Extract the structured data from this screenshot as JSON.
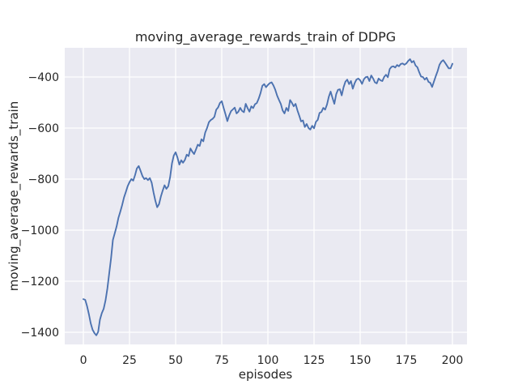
{
  "figure": {
    "title": "moving_average_rewards_train of DDPG",
    "xlabel": "episodes",
    "ylabel": "moving_average_rewards_train"
  },
  "chart_data": {
    "type": "line",
    "title": "moving_average_rewards_train of DDPG",
    "xlabel": "episodes",
    "ylabel": "moving_average_rewards_train",
    "legend": null,
    "grid": true,
    "x_start": 0,
    "x_step": 1,
    "xticks": [
      0,
      25,
      50,
      75,
      100,
      125,
      150,
      175,
      200
    ],
    "yticks": [
      -400,
      -600,
      -800,
      -1000,
      -1200,
      -1400
    ],
    "xlim": [
      -10.1,
      207.9
    ],
    "ylim": [
      -1447.6,
      -285.7
    ],
    "values": [
      -1270,
      -1273,
      -1298,
      -1330,
      -1365,
      -1390,
      -1403,
      -1412,
      -1398,
      -1350,
      -1325,
      -1308,
      -1275,
      -1228,
      -1170,
      -1110,
      -1038,
      -1012,
      -985,
      -952,
      -928,
      -902,
      -872,
      -850,
      -828,
      -812,
      -800,
      -806,
      -784,
      -758,
      -749,
      -768,
      -788,
      -800,
      -796,
      -804,
      -796,
      -814,
      -852,
      -884,
      -910,
      -898,
      -868,
      -844,
      -824,
      -838,
      -828,
      -792,
      -738,
      -708,
      -695,
      -716,
      -743,
      -726,
      -736,
      -725,
      -704,
      -710,
      -680,
      -692,
      -702,
      -684,
      -665,
      -670,
      -644,
      -652,
      -618,
      -600,
      -577,
      -569,
      -564,
      -556,
      -528,
      -519,
      -502,
      -495,
      -521,
      -546,
      -573,
      -551,
      -534,
      -527,
      -520,
      -543,
      -536,
      -521,
      -533,
      -538,
      -505,
      -522,
      -536,
      -515,
      -522,
      -507,
      -502,
      -485,
      -463,
      -434,
      -428,
      -440,
      -431,
      -424,
      -421,
      -433,
      -450,
      -473,
      -490,
      -506,
      -531,
      -543,
      -521,
      -533,
      -490,
      -501,
      -515,
      -505,
      -531,
      -552,
      -574,
      -570,
      -596,
      -584,
      -600,
      -606,
      -591,
      -601,
      -576,
      -568,
      -541,
      -537,
      -521,
      -528,
      -508,
      -478,
      -457,
      -482,
      -505,
      -467,
      -450,
      -448,
      -472,
      -440,
      -418,
      -410,
      -428,
      -416,
      -446,
      -424,
      -410,
      -406,
      -413,
      -427,
      -409,
      -401,
      -399,
      -416,
      -394,
      -406,
      -421,
      -425,
      -406,
      -413,
      -416,
      -400,
      -391,
      -401,
      -369,
      -360,
      -358,
      -363,
      -353,
      -358,
      -349,
      -347,
      -352,
      -347,
      -337,
      -330,
      -343,
      -337,
      -355,
      -362,
      -382,
      -398,
      -400,
      -410,
      -403,
      -419,
      -423,
      -439,
      -417,
      -396,
      -376,
      -352,
      -340,
      -334,
      -344,
      -355,
      -366,
      -366,
      -348
    ],
    "style": {
      "line_color": "#4c72b0",
      "axes_background": "#eaeaf2",
      "grid_color": "#ffffff",
      "text_color": "#262626",
      "figure_background": "#ffffff"
    }
  }
}
